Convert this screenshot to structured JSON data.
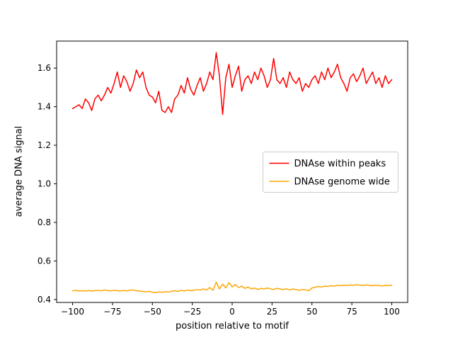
{
  "figure": {
    "background": "#ffffff"
  },
  "chart_data": {
    "type": "line",
    "title": "",
    "xlabel": "position relative to motif",
    "ylabel": "average DNA signal",
    "xlim": [
      -110,
      110
    ],
    "ylim": [
      0.385,
      1.74
    ],
    "grid": false,
    "legend_loc": "center right",
    "axis_color": "#000000",
    "tick_label_color": "#000000",
    "legend_border_color": "#cccccc",
    "xticks": {
      "values": [
        -100,
        -75,
        -50,
        -25,
        0,
        25,
        50,
        75,
        100
      ],
      "labels": [
        "−100",
        "−75",
        "−50",
        "−25",
        "0",
        "25",
        "50",
        "75",
        "100"
      ]
    },
    "yticks": {
      "values": [
        0.4,
        0.6,
        0.8,
        1.0,
        1.2,
        1.4,
        1.6
      ],
      "labels": [
        "0.4",
        "0.6",
        "0.8",
        "1.0",
        "1.2",
        "1.4",
        "1.6"
      ]
    },
    "x": [
      -100,
      -98,
      -96,
      -94,
      -92,
      -90,
      -88,
      -86,
      -84,
      -82,
      -80,
      -78,
      -76,
      -74,
      -72,
      -70,
      -68,
      -66,
      -64,
      -62,
      -60,
      -58,
      -56,
      -54,
      -52,
      -50,
      -48,
      -46,
      -44,
      -42,
      -40,
      -38,
      -36,
      -34,
      -32,
      -30,
      -28,
      -26,
      -24,
      -22,
      -20,
      -18,
      -16,
      -14,
      -12,
      -10,
      -8,
      -6,
      -4,
      -2,
      0,
      2,
      4,
      6,
      8,
      10,
      12,
      14,
      16,
      18,
      20,
      22,
      24,
      26,
      28,
      30,
      32,
      34,
      36,
      38,
      40,
      42,
      44,
      46,
      48,
      50,
      52,
      54,
      56,
      58,
      60,
      62,
      64,
      66,
      68,
      70,
      72,
      74,
      76,
      78,
      80,
      82,
      84,
      86,
      88,
      90,
      92,
      94,
      96,
      98,
      100
    ],
    "series": [
      {
        "id": "dnase-within-peaks",
        "name": "DNAse within peaks",
        "color": "#ff0000",
        "values": [
          1.39,
          1.4,
          1.41,
          1.39,
          1.44,
          1.42,
          1.38,
          1.44,
          1.46,
          1.43,
          1.46,
          1.5,
          1.47,
          1.52,
          1.58,
          1.5,
          1.56,
          1.53,
          1.48,
          1.52,
          1.59,
          1.55,
          1.58,
          1.5,
          1.46,
          1.45,
          1.42,
          1.48,
          1.38,
          1.37,
          1.4,
          1.37,
          1.44,
          1.46,
          1.51,
          1.47,
          1.55,
          1.49,
          1.46,
          1.51,
          1.55,
          1.48,
          1.52,
          1.58,
          1.54,
          1.68,
          1.56,
          1.36,
          1.55,
          1.62,
          1.5,
          1.56,
          1.61,
          1.48,
          1.54,
          1.56,
          1.52,
          1.58,
          1.54,
          1.6,
          1.56,
          1.5,
          1.54,
          1.65,
          1.54,
          1.52,
          1.55,
          1.5,
          1.58,
          1.54,
          1.52,
          1.55,
          1.48,
          1.52,
          1.5,
          1.54,
          1.56,
          1.52,
          1.58,
          1.54,
          1.6,
          1.55,
          1.58,
          1.62,
          1.55,
          1.52,
          1.48,
          1.55,
          1.57,
          1.53,
          1.56,
          1.6,
          1.52,
          1.55,
          1.58,
          1.52,
          1.55,
          1.5,
          1.56,
          1.52,
          1.54
        ]
      },
      {
        "id": "dnase-genome-wide",
        "name": "DNAse genome wide",
        "color": "#ffa500",
        "values": [
          0.445,
          0.448,
          0.444,
          0.446,
          0.445,
          0.447,
          0.444,
          0.446,
          0.448,
          0.445,
          0.45,
          0.447,
          0.445,
          0.448,
          0.446,
          0.444,
          0.447,
          0.445,
          0.448,
          0.45,
          0.446,
          0.444,
          0.442,
          0.44,
          0.443,
          0.438,
          0.436,
          0.44,
          0.437,
          0.441,
          0.439,
          0.443,
          0.446,
          0.442,
          0.448,
          0.444,
          0.45,
          0.446,
          0.448,
          0.452,
          0.449,
          0.455,
          0.45,
          0.462,
          0.448,
          0.49,
          0.455,
          0.48,
          0.46,
          0.488,
          0.465,
          0.478,
          0.462,
          0.47,
          0.458,
          0.465,
          0.455,
          0.46,
          0.452,
          0.458,
          0.455,
          0.46,
          0.456,
          0.452,
          0.458,
          0.455,
          0.452,
          0.456,
          0.45,
          0.455,
          0.452,
          0.448,
          0.452,
          0.45,
          0.446,
          0.46,
          0.464,
          0.468,
          0.465,
          0.47,
          0.468,
          0.472,
          0.47,
          0.474,
          0.472,
          0.475,
          0.473,
          0.476,
          0.474,
          0.477,
          0.475,
          0.473,
          0.476,
          0.474,
          0.472,
          0.475,
          0.473,
          0.47,
          0.474,
          0.472,
          0.475
        ]
      }
    ]
  }
}
